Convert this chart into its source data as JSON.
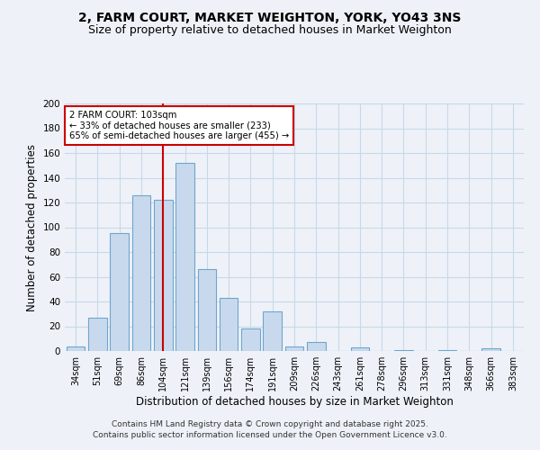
{
  "title": "2, FARM COURT, MARKET WEIGHTON, YORK, YO43 3NS",
  "subtitle": "Size of property relative to detached houses in Market Weighton",
  "xlabel": "Distribution of detached houses by size in Market Weighton",
  "ylabel": "Number of detached properties",
  "categories": [
    "34sqm",
    "51sqm",
    "69sqm",
    "86sqm",
    "104sqm",
    "121sqm",
    "139sqm",
    "156sqm",
    "174sqm",
    "191sqm",
    "209sqm",
    "226sqm",
    "243sqm",
    "261sqm",
    "278sqm",
    "296sqm",
    "313sqm",
    "331sqm",
    "348sqm",
    "366sqm",
    "383sqm"
  ],
  "values": [
    4,
    27,
    95,
    126,
    122,
    152,
    66,
    43,
    18,
    32,
    4,
    7,
    0,
    3,
    0,
    1,
    0,
    1,
    0,
    2,
    0
  ],
  "bar_color": "#c9d9ed",
  "bar_edge_color": "#6ea6cc",
  "red_line_index": 4,
  "annotation_line1": "2 FARM COURT: 103sqm",
  "annotation_line2": "← 33% of detached houses are smaller (233)",
  "annotation_line3": "65% of semi-detached houses are larger (455) →",
  "annotation_box_color": "#ffffff",
  "annotation_box_edge": "#cc0000",
  "ylim": [
    0,
    200
  ],
  "yticks": [
    0,
    20,
    40,
    60,
    80,
    100,
    120,
    140,
    160,
    180,
    200
  ],
  "grid_color": "#c8d8e8",
  "background_color": "#eef2f8",
  "footer_line1": "Contains HM Land Registry data © Crown copyright and database right 2025.",
  "footer_line2": "Contains public sector information licensed under the Open Government Licence v3.0.",
  "title_fontsize": 10,
  "subtitle_fontsize": 9,
  "axis_label_fontsize": 8.5,
  "tick_fontsize": 7,
  "footer_fontsize": 6.5
}
